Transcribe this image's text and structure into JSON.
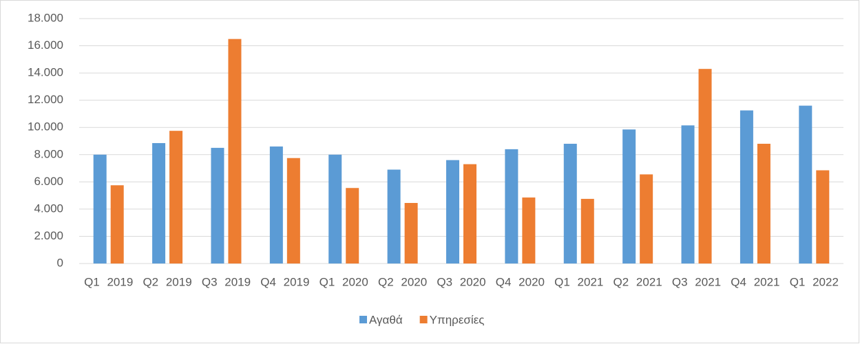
{
  "chart_data": {
    "type": "bar",
    "categories": [
      "Q1 2019",
      "Q2 2019",
      "Q3 2019",
      "Q4 2019",
      "Q1 2020",
      "Q2 2020",
      "Q3 2020",
      "Q4 2020",
      "Q1 2021",
      "Q2 2021",
      "Q3 2021",
      "Q4 2021",
      "Q1 2022"
    ],
    "series": [
      {
        "name": "Αγαθά",
        "color": "#5b9bd5",
        "values": [
          8000,
          8850,
          8500,
          8600,
          8000,
          6900,
          7600,
          8400,
          8800,
          9850,
          10150,
          11250,
          11600
        ]
      },
      {
        "name": "Υπηρεσίες",
        "color": "#ed7d31",
        "values": [
          5750,
          9750,
          16500,
          7750,
          5550,
          4450,
          7300,
          4850,
          4750,
          6550,
          14300,
          8800,
          6850
        ]
      }
    ],
    "ylim": [
      0,
      18000
    ],
    "yticks": [
      0,
      {
        "value": 2000,
        "label": "2.000"
      },
      {
        "value": 4000,
        "label": "4.000"
      },
      {
        "value": 6000,
        "label": "6.000"
      },
      {
        "value": 8000,
        "label": "8.000"
      },
      {
        "value": 10000,
        "label": "10.000"
      },
      {
        "value": 12000,
        "label": "12.000"
      },
      {
        "value": 14000,
        "label": "14.000"
      },
      {
        "value": 16000,
        "label": "16.000"
      },
      {
        "value": 18000,
        "label": "18.000"
      }
    ],
    "grid": true,
    "legend": "bottom"
  }
}
